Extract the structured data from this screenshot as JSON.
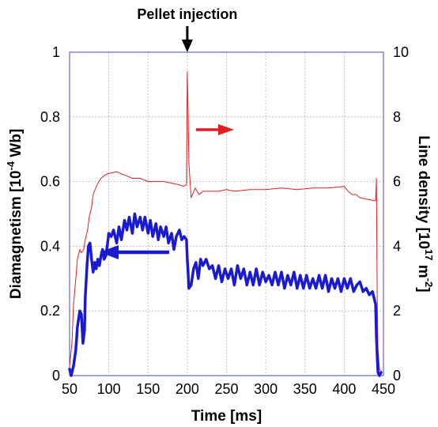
{
  "chart_data": {
    "type": "line",
    "x_axis": {
      "label": "Time [ms]",
      "range": [
        50,
        450
      ],
      "ticks": [
        50,
        100,
        150,
        200,
        250,
        300,
        350,
        400,
        450
      ]
    },
    "y_axis_left": {
      "label_main": "Diamagnetism [10",
      "label_sup": "-4",
      "label_end": " Wb]",
      "range": [
        0,
        1
      ],
      "ticks": [
        "0",
        "0.2",
        "0.4",
        "0.6",
        "0.8",
        "1"
      ],
      "tick_values": [
        0,
        0.2,
        0.4,
        0.6,
        0.8,
        1
      ]
    },
    "y_axis_right": {
      "label_main": "Line density [10",
      "label_sup1": "17",
      "label_mid": " m",
      "label_sup2": "-2",
      "label_end": "]",
      "range": [
        0,
        10
      ],
      "ticks": [
        "0",
        "2",
        "4",
        "6",
        "8",
        "10"
      ],
      "tick_values": [
        0,
        2,
        4,
        6,
        8,
        10
      ]
    },
    "grid": true,
    "annotation": {
      "text": "Pellet injection",
      "x": 200
    },
    "series": [
      {
        "axis": "right",
        "color": "#e02020",
        "width": 1,
        "x": [
          50,
          53,
          55,
          58,
          60,
          63,
          65,
          68,
          70,
          73,
          75,
          78,
          80,
          85,
          90,
          95,
          100,
          110,
          120,
          130,
          140,
          150,
          160,
          170,
          180,
          190,
          195,
          199,
          200,
          201,
          202,
          203,
          205,
          210,
          215,
          220,
          230,
          240,
          250,
          260,
          280,
          300,
          320,
          340,
          360,
          380,
          400,
          405,
          410,
          415,
          420,
          430,
          440,
          441,
          442,
          443,
          445,
          447
        ],
        "y": [
          0.3,
          1.0,
          2.2,
          3.0,
          3.6,
          3.9,
          3.8,
          3.9,
          4.2,
          4.5,
          4.9,
          5.2,
          5.6,
          5.9,
          6.1,
          6.2,
          6.25,
          6.3,
          6.2,
          6.1,
          6.1,
          6.0,
          6.0,
          6.0,
          5.95,
          5.9,
          5.85,
          5.9,
          9.4,
          8.2,
          6.6,
          6.2,
          5.5,
          5.8,
          5.6,
          5.7,
          5.7,
          5.7,
          5.75,
          5.7,
          5.75,
          5.75,
          5.8,
          5.75,
          5.8,
          5.8,
          5.85,
          5.7,
          5.6,
          5.6,
          5.5,
          5.45,
          5.4,
          6.1,
          2.5,
          0.8,
          0.2,
          0.1
        ]
      },
      {
        "axis": "left",
        "color": "#1a1ad0",
        "width": 3.5,
        "x": [
          50,
          52,
          55,
          58,
          60,
          63,
          65,
          67,
          68,
          69,
          70,
          72,
          74,
          76,
          78,
          80,
          82,
          84,
          86,
          88,
          90,
          92,
          94,
          96,
          98,
          100,
          103,
          106,
          110,
          113,
          116,
          120,
          123,
          126,
          130,
          133,
          136,
          140,
          143,
          146,
          150,
          153,
          156,
          160,
          163,
          166,
          170,
          173,
          176,
          180,
          183,
          186,
          190,
          193,
          196,
          199,
          200,
          201,
          202,
          205,
          208,
          211,
          214,
          217,
          220,
          224,
          228,
          232,
          236,
          240,
          244,
          248,
          252,
          256,
          260,
          264,
          268,
          272,
          276,
          280,
          284,
          288,
          292,
          296,
          300,
          304,
          308,
          312,
          316,
          320,
          324,
          328,
          332,
          336,
          340,
          344,
          348,
          352,
          356,
          360,
          364,
          368,
          372,
          376,
          380,
          384,
          388,
          392,
          396,
          400,
          404,
          408,
          412,
          416,
          420,
          424,
          428,
          432,
          436,
          438,
          440,
          441,
          442,
          443,
          445,
          447
        ],
        "y": [
          0.02,
          0.0,
          0.03,
          0.08,
          0.15,
          0.2,
          0.19,
          0.1,
          0.12,
          0.14,
          0.24,
          0.33,
          0.4,
          0.41,
          0.36,
          0.32,
          0.35,
          0.33,
          0.36,
          0.34,
          0.37,
          0.39,
          0.36,
          0.37,
          0.4,
          0.44,
          0.43,
          0.45,
          0.41,
          0.46,
          0.42,
          0.48,
          0.45,
          0.49,
          0.44,
          0.5,
          0.46,
          0.49,
          0.45,
          0.49,
          0.44,
          0.48,
          0.43,
          0.47,
          0.42,
          0.46,
          0.43,
          0.46,
          0.41,
          0.44,
          0.39,
          0.43,
          0.45,
          0.42,
          0.43,
          0.42,
          0.36,
          0.32,
          0.27,
          0.28,
          0.33,
          0.35,
          0.3,
          0.36,
          0.34,
          0.36,
          0.33,
          0.34,
          0.3,
          0.34,
          0.29,
          0.33,
          0.3,
          0.33,
          0.28,
          0.34,
          0.3,
          0.33,
          0.28,
          0.32,
          0.28,
          0.33,
          0.28,
          0.32,
          0.29,
          0.31,
          0.28,
          0.32,
          0.28,
          0.32,
          0.27,
          0.31,
          0.28,
          0.32,
          0.27,
          0.31,
          0.27,
          0.31,
          0.27,
          0.3,
          0.27,
          0.31,
          0.27,
          0.31,
          0.26,
          0.3,
          0.27,
          0.3,
          0.26,
          0.3,
          0.27,
          0.3,
          0.26,
          0.28,
          0.29,
          0.26,
          0.27,
          0.25,
          0.26,
          0.24,
          0.22,
          0.12,
          0.06,
          0.01,
          0.0,
          0.01
        ]
      }
    ]
  }
}
